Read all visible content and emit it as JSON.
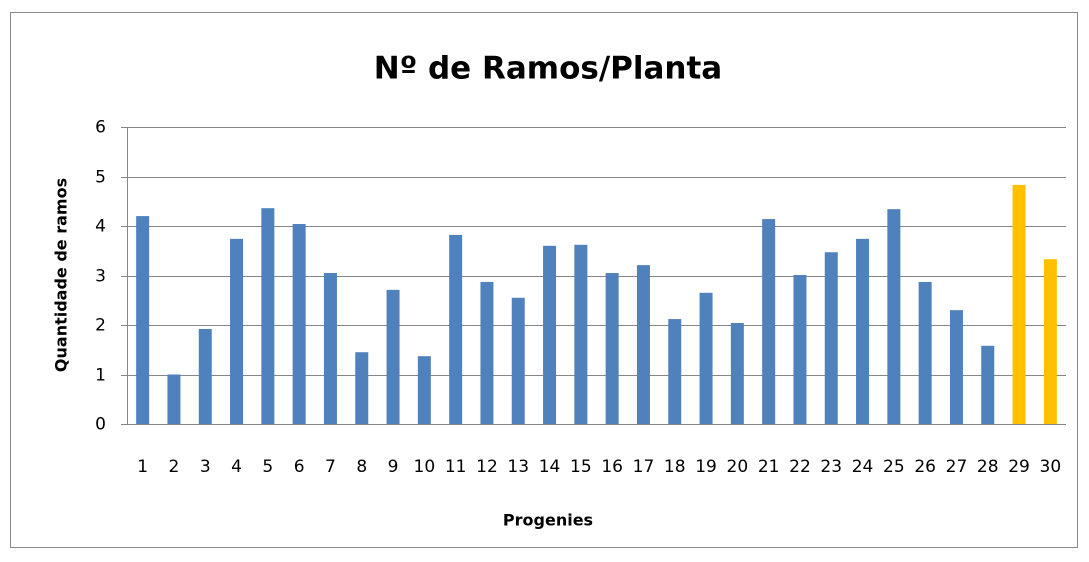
{
  "chart_data": {
    "type": "bar",
    "title": "Nº de Ramos/Planta",
    "x_label": "Progenies",
    "y_label": "Quantidade de ramos",
    "categories": [
      "1",
      "2",
      "3",
      "4",
      "5",
      "6",
      "7",
      "8",
      "9",
      "10",
      "11",
      "12",
      "13",
      "14",
      "15",
      "16",
      "17",
      "18",
      "19",
      "20",
      "21",
      "22",
      "23",
      "24",
      "25",
      "26",
      "27",
      "28",
      "29",
      "30"
    ],
    "values": [
      4.2,
      1.0,
      1.92,
      3.74,
      4.36,
      4.04,
      3.05,
      1.45,
      2.71,
      1.37,
      3.82,
      2.87,
      2.55,
      3.6,
      3.62,
      3.05,
      3.21,
      2.12,
      2.65,
      2.04,
      4.14,
      3.01,
      3.47,
      3.74,
      4.34,
      2.87,
      2.3,
      1.58,
      4.83,
      3.33
    ],
    "colors": [
      "#4f81bd",
      "#4f81bd",
      "#4f81bd",
      "#4f81bd",
      "#4f81bd",
      "#4f81bd",
      "#4f81bd",
      "#4f81bd",
      "#4f81bd",
      "#4f81bd",
      "#4f81bd",
      "#4f81bd",
      "#4f81bd",
      "#4f81bd",
      "#4f81bd",
      "#4f81bd",
      "#4f81bd",
      "#4f81bd",
      "#4f81bd",
      "#4f81bd",
      "#4f81bd",
      "#4f81bd",
      "#4f81bd",
      "#4f81bd",
      "#4f81bd",
      "#4f81bd",
      "#4f81bd",
      "#4f81bd",
      "#ffc000",
      "#ffc000"
    ],
    "ylim": [
      0,
      6
    ],
    "yticks": [
      0,
      1,
      2,
      3,
      4,
      5,
      6
    ],
    "grid": true
  }
}
